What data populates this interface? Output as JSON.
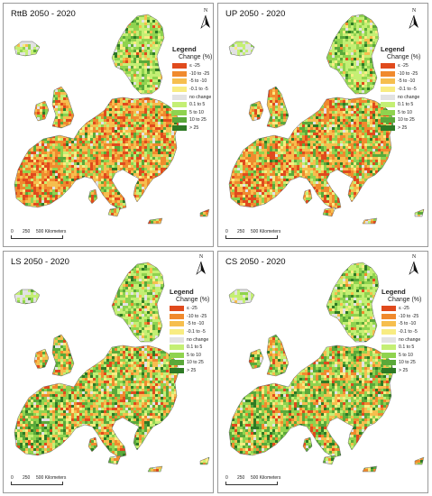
{
  "legend": {
    "title": "Legend",
    "subtitle": "Change (%)",
    "classes": [
      {
        "label": "≤ -25",
        "color": "#e04a1d"
      },
      {
        "label": "-10 to -25",
        "color": "#f08a2e"
      },
      {
        "label": "-5 to -10",
        "color": "#f6be4e"
      },
      {
        "label": "-0.1 to -5",
        "color": "#f8ec82"
      },
      {
        "label": "no change",
        "color": "#e2e2e2"
      },
      {
        "label": "0.1 to 5",
        "color": "#c4ef74"
      },
      {
        "label": "5 to 10",
        "color": "#8fd34f"
      },
      {
        "label": "10 to 25",
        "color": "#5aa93a"
      },
      {
        "label": "> 25",
        "color": "#2e7a25"
      }
    ]
  },
  "north_label": "N",
  "scale": {
    "ticks": [
      "0",
      "250",
      "500 Kilometers"
    ]
  },
  "panels": [
    {
      "title": "RttB 2050 - 2020",
      "mix": [
        0.14,
        0.22,
        0.22,
        0.06,
        0.03,
        0.08,
        0.12,
        0.1,
        0.03
      ]
    },
    {
      "title": "UP 2050 - 2020",
      "mix": [
        0.12,
        0.2,
        0.22,
        0.07,
        0.03,
        0.09,
        0.13,
        0.11,
        0.03
      ]
    },
    {
      "title": "LS 2050 - 2020",
      "mix": [
        0.06,
        0.14,
        0.2,
        0.07,
        0.04,
        0.12,
        0.17,
        0.15,
        0.05
      ]
    },
    {
      "title": "CS 2050 - 2020",
      "mix": [
        0.05,
        0.12,
        0.18,
        0.07,
        0.04,
        0.12,
        0.19,
        0.17,
        0.06
      ]
    }
  ]
}
